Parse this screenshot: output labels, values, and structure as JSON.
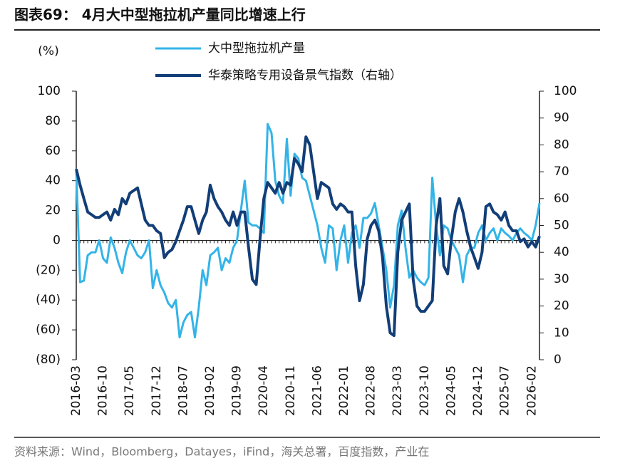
{
  "chart_data": {
    "type": "line",
    "title": "图表69： 4月大中型拖拉机产量同比增速上行",
    "y_label": "(%)",
    "source": "资料来源：Wind，Bloomberg，Datayes，iFind，海关总署，百度指数，产业在",
    "categories": [
      "2016-03",
      null,
      null,
      null,
      null,
      null,
      null,
      "2016-10",
      null,
      null,
      null,
      null,
      null,
      null,
      "2017-05",
      null,
      null,
      null,
      null,
      null,
      null,
      "2017-12",
      null,
      null,
      null,
      null,
      null,
      null,
      "2018-07",
      null,
      null,
      null,
      null,
      null,
      null,
      "2019-02",
      null,
      null,
      null,
      null,
      null,
      null,
      "2019-09",
      null,
      null,
      null,
      null,
      null,
      null,
      "2020-04",
      null,
      null,
      null,
      null,
      null,
      null,
      "2020-11",
      null,
      null,
      null,
      null,
      null,
      null,
      "2021-06",
      null,
      null,
      null,
      null,
      null,
      null,
      "2022-01",
      null,
      null,
      null,
      null,
      null,
      null,
      "2022-08",
      null,
      null,
      null,
      null,
      null,
      null,
      "2023-03",
      null,
      null,
      null,
      null,
      null,
      null,
      "2023-10",
      null,
      null,
      null,
      null,
      null,
      null,
      "2024-05",
      null,
      null,
      null,
      null,
      null,
      null,
      "2024-12",
      null,
      null,
      null,
      null,
      null,
      null,
      "2025-07",
      null,
      null,
      null,
      null,
      null,
      null,
      "2026-02",
      null,
      null
    ],
    "series": [
      {
        "name": "大中型拖拉机产量",
        "color": "#33b4e8",
        "axis": "y",
        "values": [
          48,
          -28,
          -27,
          -10,
          -8,
          -8,
          0,
          -12,
          -15,
          2,
          -5,
          -15,
          -22,
          -8,
          0,
          -5,
          -10,
          -12,
          -8,
          0,
          -32,
          -20,
          -30,
          -35,
          -42,
          -45,
          -40,
          -65,
          -55,
          -50,
          -48,
          -65,
          -45,
          -20,
          -30,
          -10,
          -8,
          -5,
          -20,
          -12,
          -15,
          -5,
          0,
          20,
          40,
          12,
          10,
          10,
          8,
          5,
          78,
          72,
          40,
          30,
          25,
          68,
          30,
          58,
          55,
          42,
          40,
          30,
          20,
          10,
          -5,
          -15,
          10,
          8,
          -20,
          0,
          10,
          -15,
          5,
          10,
          -5,
          15,
          15,
          18,
          25,
          10,
          -5,
          -20,
          -45,
          -30,
          10,
          20,
          -5,
          -25,
          -20,
          -25,
          -28,
          -30,
          -25,
          42,
          10,
          -10,
          10,
          8,
          0,
          -5,
          -10,
          -28,
          -10,
          -5,
          -5,
          5,
          10,
          0,
          5,
          8,
          0,
          8,
          5,
          3,
          0,
          5,
          8,
          5,
          3,
          0,
          10,
          25
        ]
      },
      {
        "name": "华泰策略专用设备景气指数（右轴）",
        "color": "#123e78",
        "axis": "y2",
        "values": [
          71,
          65,
          60,
          55,
          54,
          53,
          53,
          54,
          55,
          52,
          56,
          54,
          60,
          58,
          62,
          63,
          64,
          58,
          52,
          50,
          50,
          48,
          47,
          38,
          40,
          41,
          44,
          48,
          52,
          57,
          57,
          52,
          47,
          52,
          55,
          65,
          60,
          57,
          55,
          52,
          50,
          55,
          50,
          55,
          55,
          42,
          30,
          28,
          45,
          60,
          66,
          64,
          62,
          66,
          62,
          66,
          65,
          75,
          73,
          70,
          83,
          80,
          70,
          60,
          66,
          65,
          64,
          58,
          56,
          58,
          57,
          55,
          55,
          35,
          22,
          28,
          45,
          50,
          52,
          48,
          38,
          20,
          10,
          9,
          40,
          52,
          55,
          58,
          30,
          20,
          18,
          18,
          20,
          22,
          50,
          60,
          35,
          32,
          45,
          55,
          60,
          55,
          48,
          42,
          38,
          34,
          40,
          57,
          58,
          55,
          54,
          52,
          55,
          50,
          48,
          48,
          44,
          45,
          42,
          44,
          42,
          46
        ]
      }
    ],
    "ylim": [
      -80,
      100
    ],
    "yticks": [
      {
        "value": -80,
        "label": "(80)"
      },
      {
        "value": -60,
        "label": "(60)"
      },
      {
        "value": -40,
        "label": "(40)"
      },
      {
        "value": -20,
        "label": "(20)"
      },
      0,
      20,
      40,
      60,
      80,
      100
    ],
    "y2lim": [
      0,
      100
    ],
    "y2ticks": [
      0,
      10,
      20,
      30,
      40,
      50,
      60,
      70,
      80,
      90,
      100
    ]
  }
}
